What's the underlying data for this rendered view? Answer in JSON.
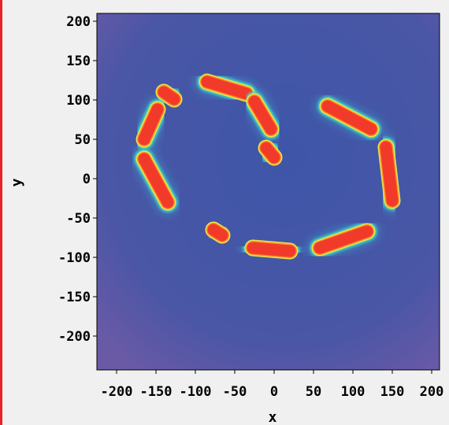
{
  "chart_data": {
    "type": "heatmap",
    "title": "",
    "xlabel": "x",
    "ylabel": "y",
    "xlim": [
      -225,
      210
    ],
    "ylim": [
      -243,
      210
    ],
    "x_ticks": [
      -200,
      -150,
      -100,
      -50,
      0,
      50,
      100,
      150,
      200
    ],
    "x_tick_labels": [
      "-200",
      "-150",
      "-100",
      "-50",
      "0",
      "50",
      "100",
      "150",
      "200"
    ],
    "y_ticks": [
      200,
      150,
      100,
      50,
      0,
      -50,
      -100,
      -150,
      -200
    ],
    "y_tick_labels": [
      "200",
      "150",
      "100",
      "50",
      "0",
      "-50",
      "-100",
      "-150",
      "-200"
    ],
    "grid": false,
    "colormap": [
      "#4655a6",
      "#3f8fc4",
      "#3fd9c4",
      "#e6e84a",
      "#ff8a2a",
      "#f23a2a"
    ],
    "background_color": "#4a5aa6",
    "hot_spots": [
      {
        "x1": -140,
        "y1": 110,
        "x2": -127,
        "y2": 101
      },
      {
        "x1": -165,
        "y1": 50,
        "x2": -148,
        "y2": 88
      },
      {
        "x1": -165,
        "y1": 25,
        "x2": -135,
        "y2": -30
      },
      {
        "x1": -85,
        "y1": 123,
        "x2": -35,
        "y2": 108
      },
      {
        "x1": -25,
        "y1": 98,
        "x2": -4,
        "y2": 63
      },
      {
        "x1": -10,
        "y1": 39,
        "x2": 0,
        "y2": 27
      },
      {
        "x1": 68,
        "y1": 92,
        "x2": 123,
        "y2": 63
      },
      {
        "x1": 142,
        "y1": 40,
        "x2": 150,
        "y2": -28
      },
      {
        "x1": -77,
        "y1": -65,
        "x2": -66,
        "y2": -72
      },
      {
        "x1": -27,
        "y1": -88,
        "x2": 20,
        "y2": -92
      },
      {
        "x1": 58,
        "y1": -88,
        "x2": 118,
        "y2": -67
      }
    ]
  }
}
